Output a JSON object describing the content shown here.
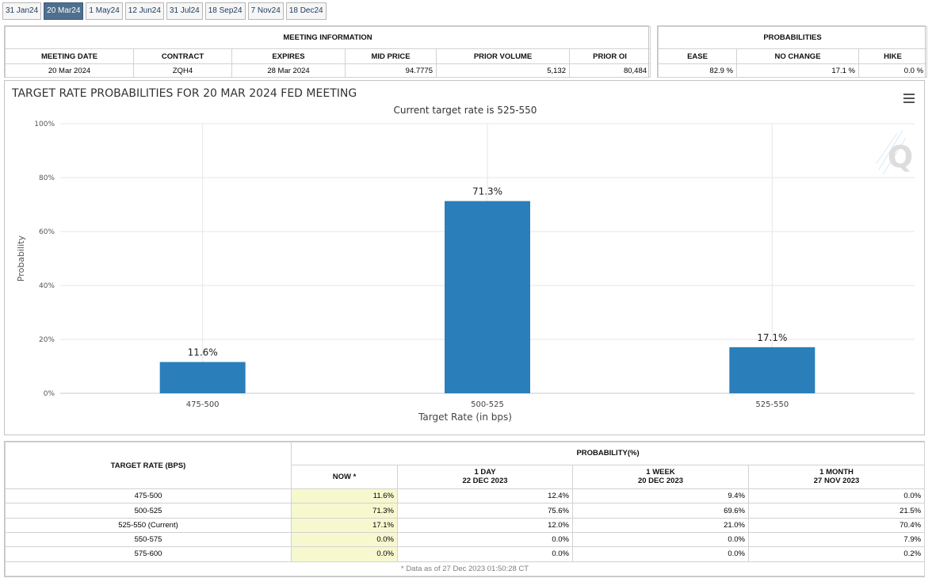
{
  "tabs": [
    {
      "label": "31 Jan24",
      "active": false
    },
    {
      "label": "20 Mar24",
      "active": true
    },
    {
      "label": "1 May24",
      "active": false
    },
    {
      "label": "12 Jun24",
      "active": false
    },
    {
      "label": "31 Jul24",
      "active": false
    },
    {
      "label": "18 Sep24",
      "active": false
    },
    {
      "label": "7 Nov24",
      "active": false
    },
    {
      "label": "18 Dec24",
      "active": false
    }
  ],
  "meeting_info": {
    "title": "MEETING INFORMATION",
    "headers": [
      "MEETING DATE",
      "CONTRACT",
      "EXPIRES",
      "MID PRICE",
      "PRIOR VOLUME",
      "PRIOR OI"
    ],
    "row": [
      "20 Mar 2024",
      "ZQH4",
      "28 Mar 2024",
      "94.7775",
      "5,132",
      "80,484"
    ]
  },
  "probabilities": {
    "title": "PROBABILITIES",
    "headers": [
      "EASE",
      "NO CHANGE",
      "HIKE"
    ],
    "row": [
      "82.9 %",
      "17.1 %",
      "0.0 %"
    ]
  },
  "chart_data": {
    "type": "bar",
    "title": "TARGET RATE PROBABILITIES FOR 20 MAR 2024 FED MEETING",
    "subtitle": "Current target rate is 525-550",
    "xlabel": "Target Rate (in bps)",
    "ylabel": "Probability",
    "categories": [
      "475-500",
      "500-525",
      "525-550"
    ],
    "values": [
      11.6,
      71.3,
      17.1
    ],
    "data_labels": [
      "11.6%",
      "71.3%",
      "17.1%"
    ],
    "ylim": [
      0,
      100
    ],
    "yticks": [
      0,
      20,
      40,
      60,
      80,
      100
    ],
    "ytick_labels": [
      "0%",
      "20%",
      "40%",
      "60%",
      "80%",
      "100%"
    ],
    "grid": true,
    "bar_color": "#2a7fba"
  },
  "history": {
    "col_target": "TARGET RATE (BPS)",
    "col_prob": "PROBABILITY(%)",
    "col_now": "NOW *",
    "col_day": "1 DAY",
    "col_day_date": "22 DEC 2023",
    "col_week": "1 WEEK",
    "col_week_date": "20 DEC 2023",
    "col_month": "1 MONTH",
    "col_month_date": "27 NOV 2023",
    "rows": [
      {
        "rate": "475-500",
        "now": "11.6%",
        "day": "12.4%",
        "week": "9.4%",
        "month": "0.0%"
      },
      {
        "rate": "500-525",
        "now": "71.3%",
        "day": "75.6%",
        "week": "69.6%",
        "month": "21.5%"
      },
      {
        "rate": "525-550 (Current)",
        "now": "17.1%",
        "day": "12.0%",
        "week": "21.0%",
        "month": "70.4%"
      },
      {
        "rate": "550-575",
        "now": "0.0%",
        "day": "0.0%",
        "week": "0.0%",
        "month": "7.9%"
      },
      {
        "rate": "575-600",
        "now": "0.0%",
        "day": "0.0%",
        "week": "0.0%",
        "month": "0.2%"
      }
    ],
    "footnote": "* Data as of 27 Dec 2023 01:50:28 CT"
  }
}
